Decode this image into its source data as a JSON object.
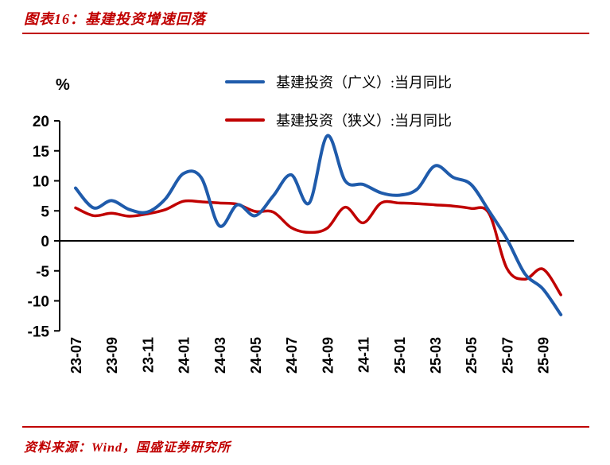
{
  "header": {
    "title": "图表16：基建投资增速回落"
  },
  "footer": {
    "source": "资料来源：Wind，国盛证券研究所"
  },
  "colors": {
    "accent": "#c00000",
    "blue": "#1f5bab",
    "red": "#c00000",
    "axis": "#000000"
  },
  "chart_data": {
    "type": "line",
    "unit_label": "%",
    "x": [
      "23-07",
      "23-08",
      "23-09",
      "23-10",
      "23-11",
      "23-12",
      "24-01",
      "24-02",
      "24-03",
      "24-04",
      "24-05",
      "24-06",
      "24-07",
      "24-08",
      "24-09",
      "24-10",
      "24-11",
      "24-12",
      "25-01",
      "25-02",
      "25-03",
      "25-04",
      "25-05",
      "25-06",
      "25-07",
      "25-08",
      "25-09",
      "25-10"
    ],
    "x_tick_every": 2,
    "series": [
      {
        "name": "基建投资（广义）:当月同比",
        "color": "#1f5bab",
        "values": [
          8.8,
          5.5,
          6.7,
          5.2,
          4.8,
          7.0,
          11.2,
          10.5,
          2.5,
          6.0,
          4.2,
          7.5,
          11.0,
          6.3,
          17.5,
          10.0,
          9.4,
          8.0,
          7.6,
          8.6,
          12.5,
          10.6,
          9.4,
          5.0,
          0.3,
          -5.5,
          -8.0,
          -12.3
        ]
      },
      {
        "name": "基建投资（狭义）:当月同比",
        "color": "#c00000",
        "values": [
          5.5,
          4.2,
          4.6,
          4.1,
          4.5,
          5.2,
          6.6,
          6.5,
          6.3,
          6.1,
          4.9,
          4.8,
          2.2,
          1.4,
          2.1,
          5.6,
          3.0,
          6.3,
          6.3,
          6.2,
          6.0,
          5.8,
          5.4,
          4.6,
          -4.6,
          -6.4,
          -4.7,
          -9.0
        ]
      }
    ],
    "ylim": [
      -15,
      20
    ],
    "y_ticks": [
      20,
      15,
      10,
      5,
      0,
      -5,
      -10,
      -15
    ],
    "grid": false,
    "legend_position": "top-center"
  }
}
